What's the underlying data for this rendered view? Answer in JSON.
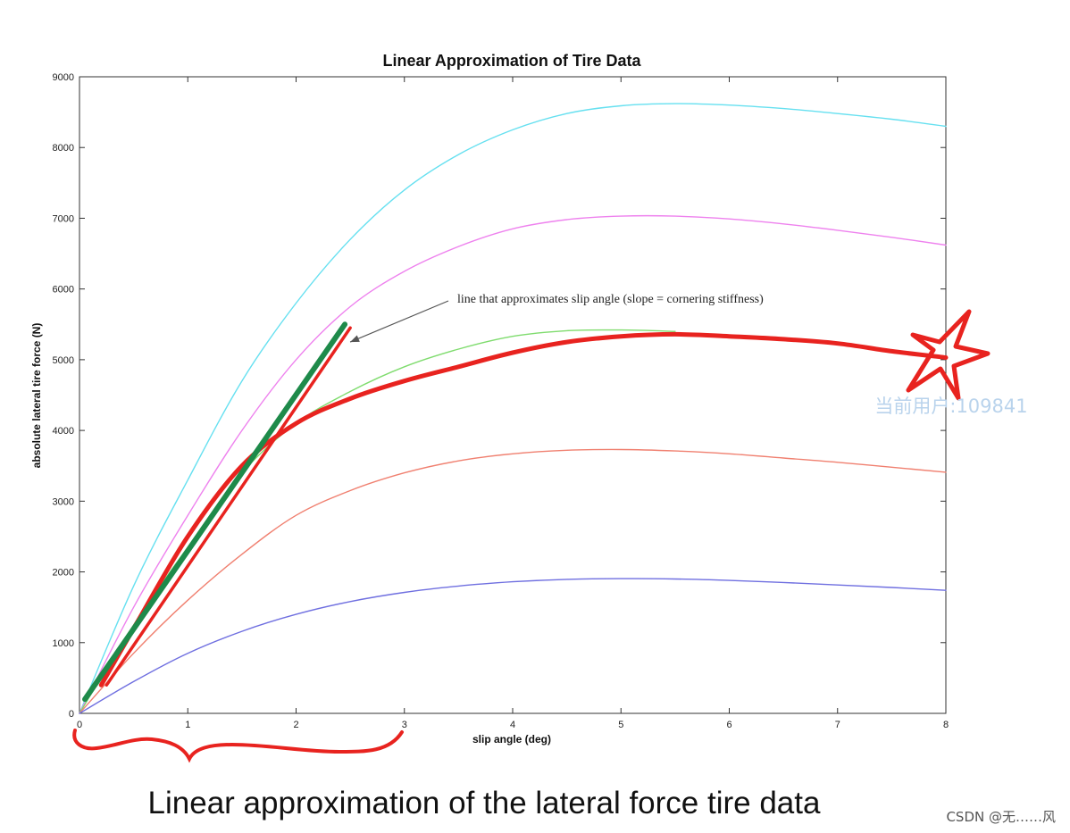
{
  "chart_data": {
    "type": "line",
    "title": "Linear Approximation of Tire Data",
    "xlabel": "slip angle (deg)",
    "ylabel": "absolute lateral tire force (N)",
    "xlim": [
      0,
      8
    ],
    "ylim": [
      0,
      9000
    ],
    "x_ticks": [
      0,
      1,
      2,
      3,
      4,
      5,
      6,
      7,
      8
    ],
    "y_ticks": [
      0,
      1000,
      2000,
      3000,
      4000,
      5000,
      6000,
      7000,
      8000,
      9000
    ],
    "grid": false,
    "series": [
      {
        "color": "#66e0f0",
        "x": [
          0,
          0.5,
          1,
          1.5,
          2,
          2.5,
          3,
          3.5,
          4,
          4.5,
          5,
          5.5,
          6,
          6.5,
          7,
          7.5,
          8
        ],
        "y": [
          0,
          1800,
          3300,
          4700,
          5800,
          6700,
          7400,
          7900,
          8250,
          8480,
          8590,
          8620,
          8600,
          8550,
          8480,
          8400,
          8300
        ]
      },
      {
        "color": "#ee82ee",
        "x": [
          0,
          0.5,
          1,
          1.5,
          2,
          2.5,
          3,
          3.5,
          4,
          4.5,
          5,
          5.5,
          6,
          6.5,
          7,
          7.5,
          8
        ],
        "y": [
          0,
          1500,
          2800,
          4000,
          5000,
          5750,
          6250,
          6600,
          6850,
          6980,
          7030,
          7030,
          6990,
          6920,
          6830,
          6730,
          6620
        ]
      },
      {
        "color": "#7fdc6e",
        "x": [
          0,
          0.5,
          1,
          1.5,
          2,
          2.5,
          3,
          3.5,
          4,
          4.5,
          5,
          5.5
        ],
        "y": [
          0,
          1250,
          2350,
          3400,
          4100,
          4550,
          4900,
          5150,
          5330,
          5410,
          5420,
          5400
        ]
      },
      {
        "color": "#f08070",
        "x": [
          0,
          0.5,
          1,
          1.5,
          2,
          2.5,
          3,
          3.5,
          4,
          4.5,
          5,
          5.5,
          6,
          6.5,
          7,
          7.5,
          8
        ],
        "y": [
          0,
          850,
          1600,
          2250,
          2800,
          3150,
          3400,
          3570,
          3670,
          3720,
          3730,
          3710,
          3670,
          3610,
          3550,
          3480,
          3410
        ]
      },
      {
        "color": "#6f6fe0",
        "x": [
          0,
          0.5,
          1,
          1.5,
          2,
          2.5,
          3,
          3.5,
          4,
          4.5,
          5,
          5.5,
          6,
          6.5,
          7,
          7.5,
          8
        ],
        "y": [
          0,
          450,
          850,
          1160,
          1400,
          1580,
          1710,
          1800,
          1860,
          1895,
          1905,
          1900,
          1880,
          1850,
          1815,
          1780,
          1740
        ]
      },
      {
        "color": "#e8231f",
        "highlight": true,
        "x": [
          0.2,
          0.5,
          1,
          1.5,
          2,
          2.5,
          3,
          3.5,
          4,
          4.5,
          5,
          5.5,
          6,
          6.5,
          7,
          7.5,
          8
        ],
        "y": [
          400,
          1200,
          2500,
          3500,
          4100,
          4450,
          4700,
          4900,
          5100,
          5250,
          5330,
          5360,
          5330,
          5290,
          5230,
          5120,
          5030
        ]
      }
    ],
    "approximation_lines": [
      {
        "color": "#1e8a4a",
        "x": [
          0.05,
          2.45
        ],
        "y": [
          200,
          5500
        ]
      },
      {
        "color": "#e8231f",
        "x": [
          0.25,
          2.5
        ],
        "y": [
          400,
          5450
        ]
      }
    ],
    "annotation": {
      "text": "line that approximates slip angle (slope = cornering stiffness)",
      "point_x": 2.45,
      "point_y": 5250
    }
  },
  "watermark": "当前用户:109841",
  "caption": "Linear approximation of the lateral force tire data",
  "credit": "CSDN @无……风"
}
